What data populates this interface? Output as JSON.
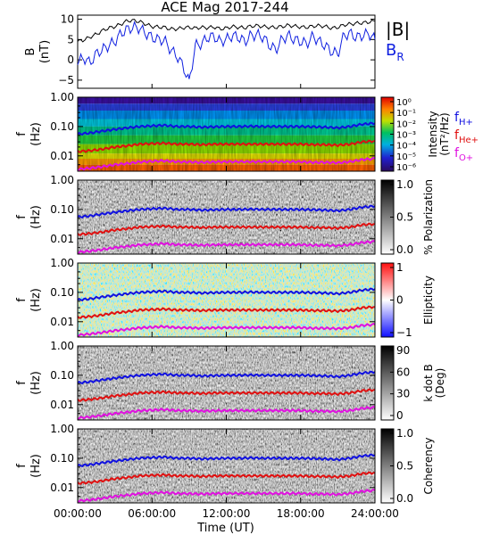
{
  "title": "ACE Mag 2017-244",
  "xlabel": "Time (UT)",
  "x_ticks": [
    "00:00:00",
    "06:00:00",
    "12:00:00",
    "18:00:00",
    "24:00:00"
  ],
  "freq_ticks": [
    "1.00",
    "0.10",
    "0.01"
  ],
  "panel_ylabel": [
    "f",
    "(Hz)"
  ],
  "line_colors": {
    "H": "#1010e0",
    "He": "#e01010",
    "O": "#e010e0",
    "B": "#000000",
    "BR": "#1020e0"
  },
  "lines": {
    "H_label": "f",
    "H_sub": "H+",
    "He_label": "f",
    "He_sub": "He+",
    "O_label": "f",
    "O_sub": "O+"
  },
  "panels": [
    {
      "name": "intensity",
      "cbar_label": "Intensity",
      "cbar_label2": "(nT²/Hz)",
      "cbar_ticks": [
        "10⁰",
        "10⁻¹",
        "10⁻²",
        "10⁻³",
        "10⁻⁴",
        "10⁻⁵",
        "10⁻⁶"
      ],
      "colormap": "rainbow"
    },
    {
      "name": "polarization",
      "cbar_label": "% Polarization",
      "cbar_label2": "",
      "cbar_ticks": [
        "1.0",
        "0.5",
        "0.0"
      ],
      "colormap": "gray"
    },
    {
      "name": "ellipticity",
      "cbar_label": "Ellipticity",
      "cbar_label2": "",
      "cbar_ticks": [
        "1",
        "0",
        "−1"
      ],
      "colormap": "bwr"
    },
    {
      "name": "k-dot-b",
      "cbar_label": "k dot B",
      "cbar_label2": "(Deg)",
      "cbar_ticks": [
        "90",
        "60",
        "30",
        "0"
      ],
      "colormap": "gray"
    },
    {
      "name": "coherency",
      "cbar_label": "Coherency",
      "cbar_label2": "",
      "cbar_ticks": [
        "1.0",
        "0.5",
        "0.0"
      ],
      "colormap": "gray"
    }
  ],
  "chart_data": [
    {
      "type": "line",
      "title": "ACE Mag 2017-244",
      "ylabel": "B (nT)",
      "ylim": [
        -7,
        11
      ],
      "y_ticks": [
        "10",
        "5",
        "0",
        "−5"
      ],
      "legend": [
        "|B|",
        "B",
        "R"
      ],
      "x": [
        0,
        0.5,
        1,
        1.5,
        2,
        2.5,
        3,
        3.5,
        4,
        4.5,
        5,
        5.5,
        6,
        6.5,
        7,
        7.5,
        8,
        8.5,
        9,
        9.5,
        10,
        10.5,
        11,
        11.5,
        12,
        12.5,
        13,
        13.5,
        14,
        14.5,
        15,
        15.5,
        16,
        16.5,
        17,
        17.5,
        18,
        18.5,
        19,
        19.5,
        20,
        20.5,
        21,
        21.5,
        22,
        22.5,
        23,
        23.5,
        24
      ],
      "series": [
        {
          "name": "|B|",
          "values": [
            4.5,
            4.9,
            5.6,
            6.3,
            7.2,
            7.8,
            8.2,
            8.8,
            9.6,
            9.7,
            9.4,
            8.8,
            8.2,
            8.1,
            8.0,
            7.6,
            7.6,
            7.9,
            8.0,
            7.8,
            8.0,
            7.9,
            8.1,
            7.6,
            7.8,
            8.2,
            8.0,
            7.9,
            8.3,
            8.4,
            8.2,
            8.0,
            8.0,
            8.2,
            8.5,
            8.3,
            8.1,
            8.0,
            8.3,
            8.4,
            8.2,
            7.8,
            8.0,
            8.6,
            8.8,
            9.0,
            9.1,
            9.3,
            9.5
          ]
        },
        {
          "name": "BR",
          "values": [
            -0.5,
            0.5,
            -0.8,
            1.5,
            2.5,
            3.5,
            4.5,
            6.5,
            7.5,
            8.0,
            7.8,
            6.5,
            5.5,
            5.0,
            4.8,
            2.5,
            1.0,
            -1.5,
            -5.5,
            3.5,
            4.0,
            5.5,
            5.8,
            4.5,
            5.0,
            6.0,
            5.5,
            4.5,
            6.0,
            6.2,
            5.5,
            3.5,
            2.5,
            5.0,
            6.0,
            5.0,
            4.5,
            4.0,
            5.8,
            4.5,
            3.5,
            2.0,
            1.5,
            6.0,
            6.5,
            5.5,
            6.0,
            6.5,
            5.0
          ]
        }
      ]
    },
    {
      "type": "heatmap",
      "ylabel": "f (Hz)",
      "ylim": [
        0.003,
        1.0
      ],
      "y_scale": "log",
      "x": [
        0,
        1,
        2,
        3,
        4,
        5,
        6,
        7,
        8,
        9,
        10,
        11,
        12,
        13,
        14,
        15,
        16,
        17,
        18,
        19,
        20,
        21,
        22,
        23,
        24
      ],
      "series": [
        {
          "name": "fH+",
          "values": [
            0.055,
            0.06,
            0.07,
            0.08,
            0.09,
            0.1,
            0.105,
            0.11,
            0.1,
            0.1,
            0.095,
            0.098,
            0.1,
            0.1,
            0.102,
            0.1,
            0.1,
            0.1,
            0.1,
            0.098,
            0.095,
            0.09,
            0.1,
            0.12,
            0.13
          ]
        },
        {
          "name": "fHe+",
          "values": [
            0.014,
            0.015,
            0.017,
            0.02,
            0.022,
            0.025,
            0.026,
            0.027,
            0.025,
            0.025,
            0.024,
            0.025,
            0.025,
            0.025,
            0.025,
            0.025,
            0.025,
            0.025,
            0.025,
            0.024,
            0.024,
            0.023,
            0.025,
            0.03,
            0.032
          ]
        },
        {
          "name": "fO+",
          "values": [
            0.0035,
            0.0038,
            0.0043,
            0.005,
            0.0055,
            0.0062,
            0.0065,
            0.0068,
            0.0063,
            0.0062,
            0.006,
            0.0062,
            0.0063,
            0.0063,
            0.0063,
            0.0063,
            0.0063,
            0.0063,
            0.0063,
            0.006,
            0.006,
            0.0058,
            0.0063,
            0.0075,
            0.008
          ]
        }
      ]
    }
  ]
}
